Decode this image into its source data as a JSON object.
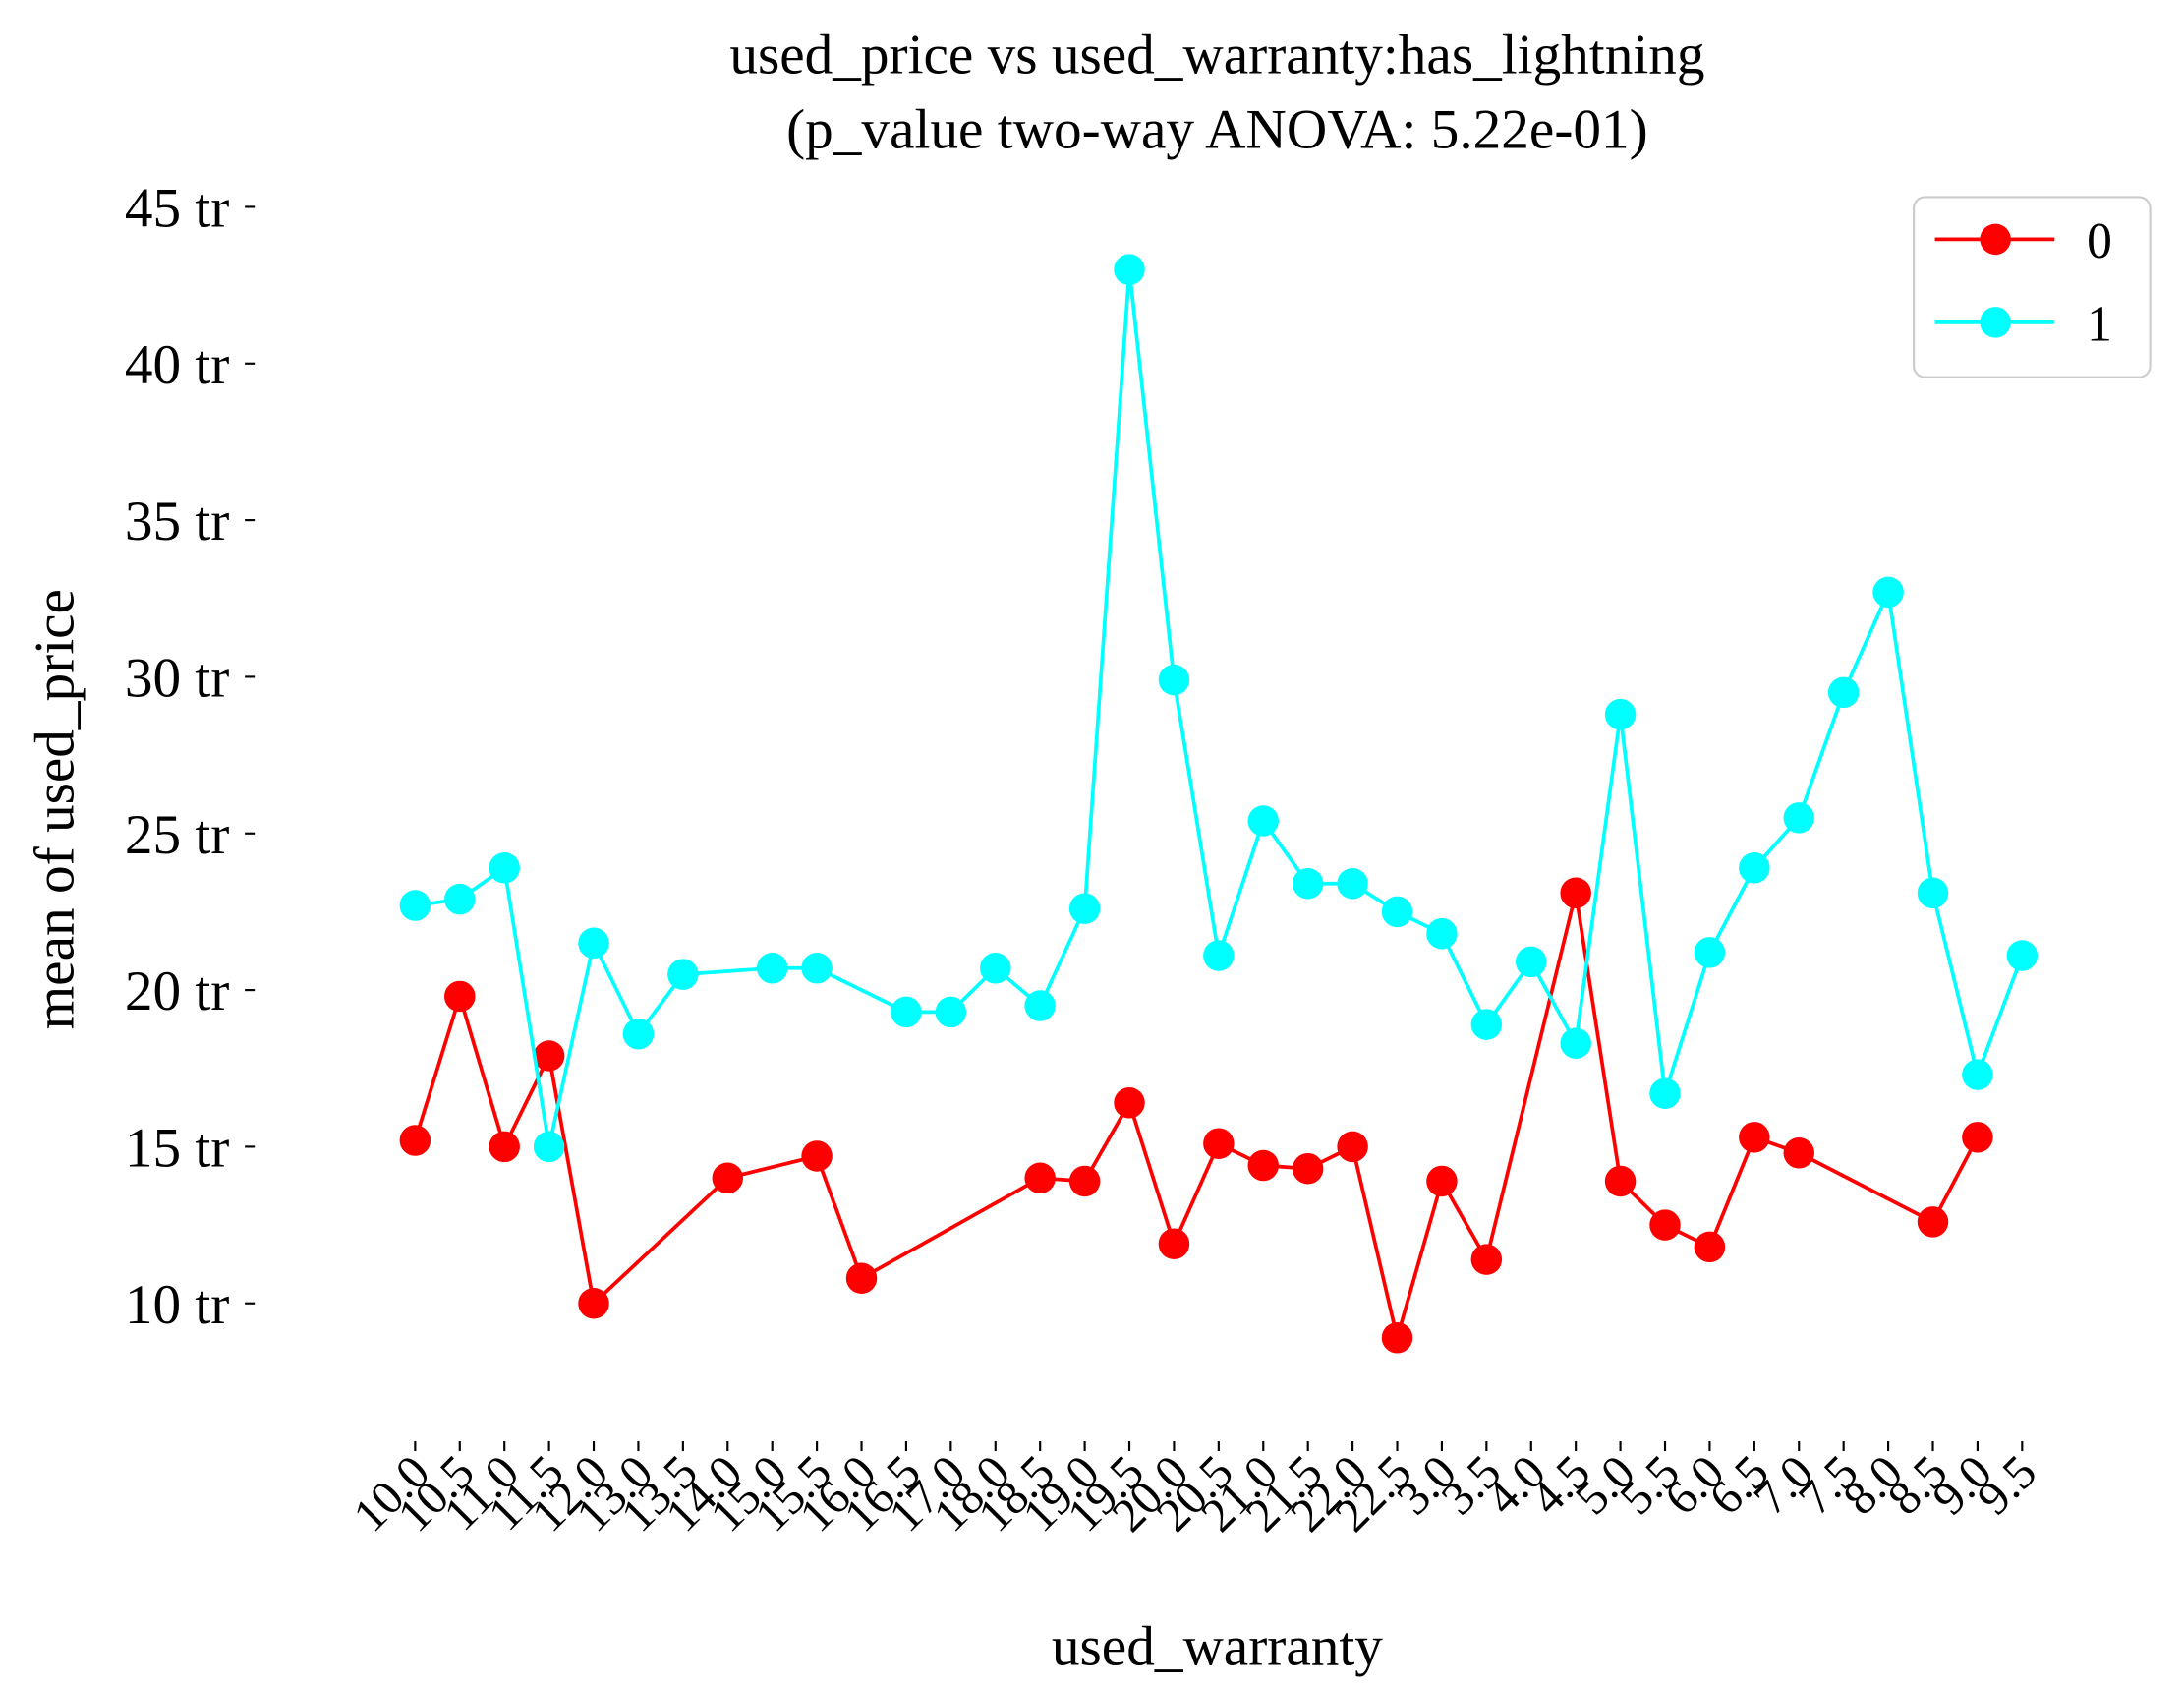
{
  "chart_data": {
    "type": "line",
    "title": "used_price vs used_warranty:has_lightning",
    "subtitle": "(p_value two-way ANOVA: 5.22e-01)",
    "x_label": "used_warranty",
    "y_label": "mean of used_price",
    "categories": [
      "10.0",
      "10.5",
      "11.0",
      "11.5",
      "12.0",
      "13.0",
      "13.5",
      "14.0",
      "15.0",
      "15.5",
      "16.0",
      "16.5",
      "17.0",
      "18.0",
      "18.5",
      "19.0",
      "19.5",
      "20.0",
      "20.5",
      "21.0",
      "21.5",
      "22.0",
      "22.5",
      "3.0",
      "3.5",
      "4.0",
      "4.5",
      "5.0",
      "5.5",
      "6.0",
      "6.5",
      "7.0",
      "7.5",
      "8.0",
      "8.5",
      "9.0",
      "9.5"
    ],
    "series": [
      {
        "name": "0",
        "color": "#ff0000",
        "values": [
          15.2,
          19.8,
          15.0,
          17.9,
          10.0,
          null,
          null,
          14.0,
          null,
          14.7,
          10.8,
          null,
          null,
          null,
          14.0,
          13.9,
          16.4,
          11.9,
          15.1,
          14.4,
          14.3,
          15.0,
          8.9,
          13.9,
          11.4,
          null,
          23.1,
          13.9,
          12.5,
          11.8,
          15.3,
          14.8,
          null,
          null,
          12.6,
          15.3,
          null
        ]
      },
      {
        "name": "1",
        "color": "#00ffff",
        "values": [
          22.7,
          22.9,
          23.9,
          15.0,
          21.5,
          18.6,
          20.5,
          null,
          20.7,
          20.7,
          null,
          19.3,
          19.3,
          20.7,
          19.5,
          22.6,
          43.0,
          29.9,
          21.1,
          25.4,
          23.4,
          23.4,
          22.5,
          21.8,
          18.9,
          20.9,
          18.3,
          28.8,
          16.7,
          21.2,
          23.9,
          25.5,
          29.5,
          32.7,
          23.1,
          17.3,
          21.1
        ]
      }
    ],
    "ylim": [
      6,
      46
    ],
    "yticks": [
      {
        "value": 10,
        "label": "10 tr"
      },
      {
        "value": 15,
        "label": "15 tr"
      },
      {
        "value": 20,
        "label": "20 tr"
      },
      {
        "value": 25,
        "label": "25 tr"
      },
      {
        "value": 30,
        "label": "30 tr"
      },
      {
        "value": 35,
        "label": "35 tr"
      },
      {
        "value": 40,
        "label": "40 tr"
      },
      {
        "value": 45,
        "label": "45 tr"
      }
    ],
    "legend": "upper right"
  }
}
